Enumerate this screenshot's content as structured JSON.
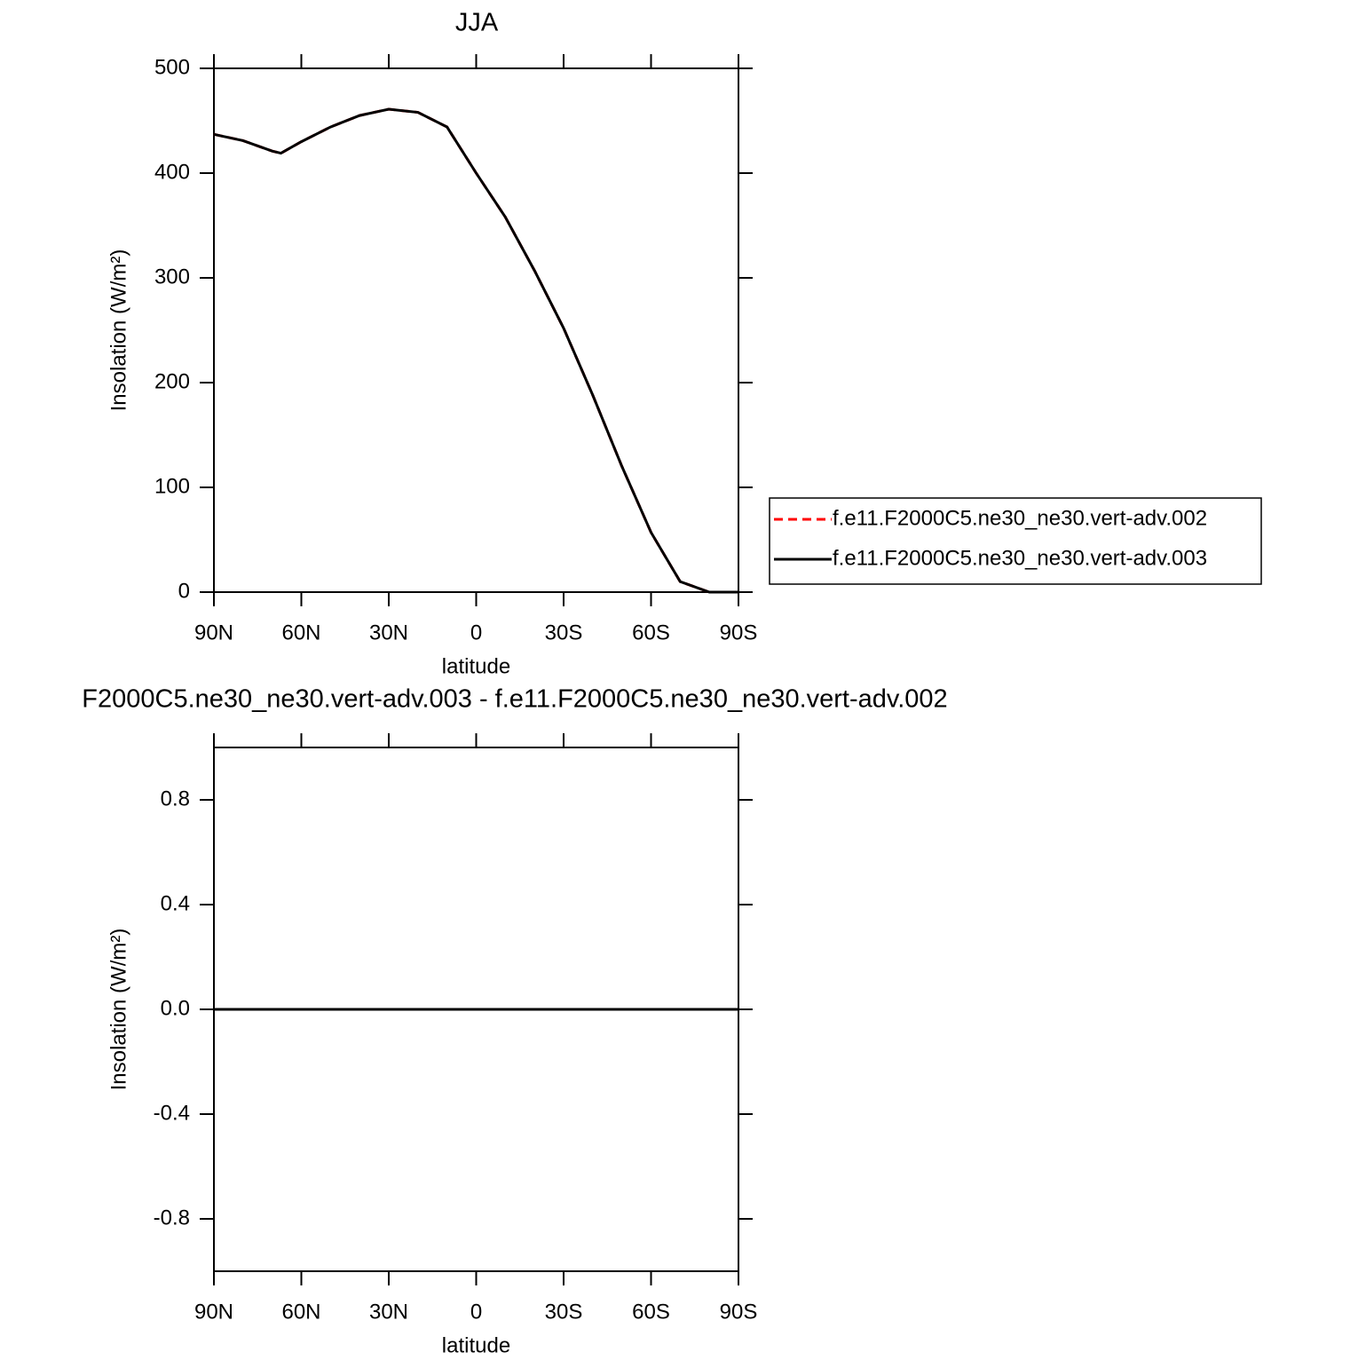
{
  "chart_data": [
    {
      "type": "line",
      "title": "JJA",
      "xlabel": "latitude",
      "ylabel": "Insolation (W/m²)",
      "x": [
        90,
        80,
        70,
        67,
        60,
        50,
        40,
        30,
        20,
        10,
        0,
        -10,
        -20,
        -30,
        -40,
        -50,
        -60,
        -70,
        -80,
        -90
      ],
      "series": [
        {
          "name": "f.e11.F2000C5.ne30_ne30.vert-adv.002",
          "color": "#ff0000",
          "linestyle": "dashed",
          "values": [
            437,
            431,
            421,
            419,
            430,
            444,
            455,
            461,
            458,
            444,
            400,
            358,
            307,
            252,
            188,
            120,
            57,
            10,
            0,
            0
          ]
        },
        {
          "name": "f.e11.F2000C5.ne30_ne30.vert-adv.003",
          "color": "#000000",
          "linestyle": "solid",
          "values": [
            437,
            431,
            421,
            419,
            430,
            444,
            455,
            461,
            458,
            444,
            400,
            358,
            307,
            252,
            188,
            120,
            57,
            10,
            0,
            0
          ]
        }
      ],
      "xlim": [
        90,
        -90
      ],
      "xticks": [
        {
          "value": 90,
          "label": "90N"
        },
        {
          "value": 60,
          "label": "60N"
        },
        {
          "value": 30,
          "label": "30N"
        },
        0,
        {
          "value": -30,
          "label": "30S"
        },
        {
          "value": -60,
          "label": "60S"
        },
        {
          "value": -90,
          "label": "90S"
        }
      ],
      "ylim": [
        0,
        500
      ],
      "yticks": [
        0,
        100,
        200,
        300,
        400,
        500
      ],
      "legend": "right"
    },
    {
      "type": "line",
      "title": "F2000C5.ne30_ne30.vert-adv.003 - f.e11.F2000C5.ne30_ne30.vert-adv.002",
      "xlabel": "latitude",
      "ylabel": "Insolation (W/m²)",
      "x": [
        90,
        80,
        70,
        60,
        50,
        40,
        30,
        20,
        10,
        0,
        -10,
        -20,
        -30,
        -40,
        -50,
        -60,
        -70,
        -80,
        -90
      ],
      "series": [
        {
          "color": "#000000",
          "linestyle": "solid",
          "values": [
            0,
            0,
            0,
            0,
            0,
            0,
            0,
            0,
            0,
            0,
            0,
            0,
            0,
            0,
            0,
            0,
            0,
            0,
            0
          ]
        }
      ],
      "xlim": [
        90,
        -90
      ],
      "xticks": [
        {
          "value": 90,
          "label": "90N"
        },
        {
          "value": 60,
          "label": "60N"
        },
        {
          "value": 30,
          "label": "30N"
        },
        0,
        {
          "value": -30,
          "label": "30S"
        },
        {
          "value": -60,
          "label": "60S"
        },
        {
          "value": -90,
          "label": "90S"
        }
      ],
      "ylim": [
        -1,
        1
      ],
      "yticks": [
        -0.8,
        -0.4,
        {
          "value": 0,
          "label": "0.0"
        },
        0.4,
        0.8
      ]
    }
  ]
}
